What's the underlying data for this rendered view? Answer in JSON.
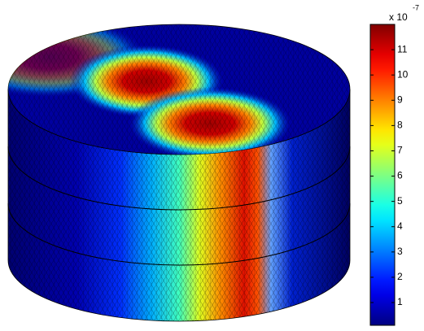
{
  "chart_data": {
    "type": "surface",
    "colormap": "jet",
    "colorbar": {
      "lim": [
        0.1,
        12
      ],
      "ticks": [
        1,
        2,
        3,
        4,
        5,
        6,
        7,
        8,
        9,
        10,
        11
      ],
      "exponent_base": "x 10",
      "exponent": "-7"
    }
  }
}
